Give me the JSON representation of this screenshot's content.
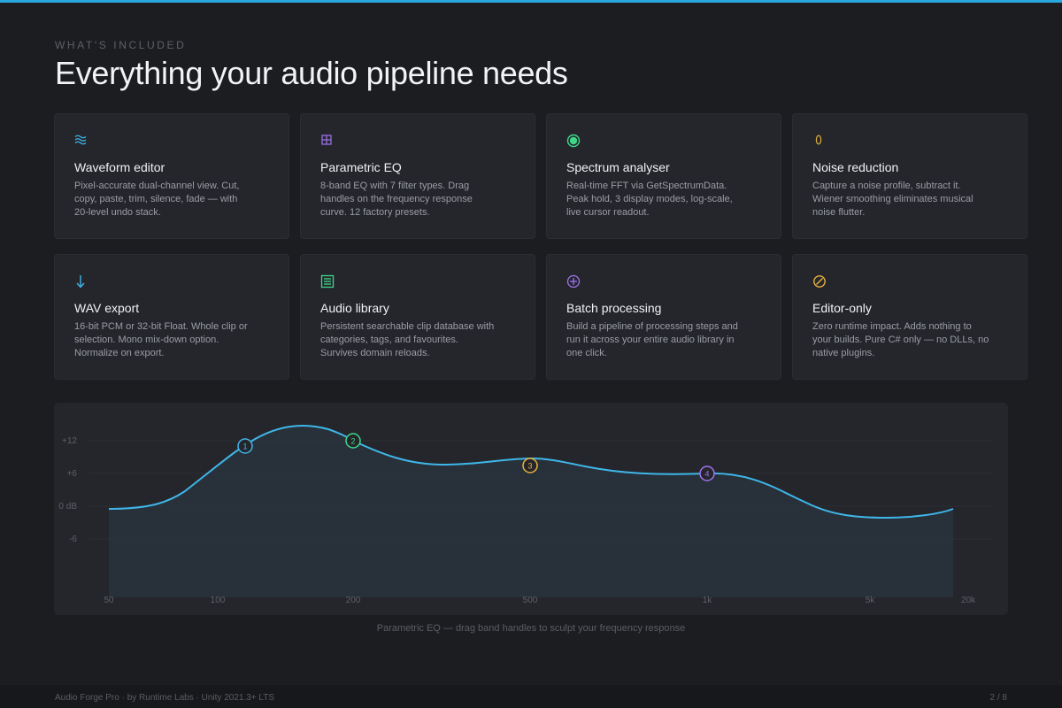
{
  "header": {
    "eyebrow": "WHAT'S INCLUDED",
    "title": "Everything your audio pipeline needs"
  },
  "features": [
    {
      "icon": "waveform-icon",
      "color": "#3fb6e8",
      "title": "Waveform editor",
      "description": "Pixel-accurate dual-channel view. Cut, copy, paste, trim, silence, fade — with 20-level undo stack."
    },
    {
      "icon": "grid-icon",
      "color": "#a074f0",
      "title": "Parametric EQ",
      "description": "8-band EQ with 7 filter types. Drag handles on the frequency response curve. 12 factory presets."
    },
    {
      "icon": "target-icon",
      "color": "#3fd68a",
      "title": "Spectrum analyser",
      "description": "Real-time FFT via GetSpectrumData. Peak hold, 3 display modes, log-scale, live cursor readout."
    },
    {
      "icon": "zero-icon",
      "color": "#e8b13f",
      "title": "Noise reduction",
      "description": "Capture a noise profile, subtract it. Wiener smoothing eliminates musical noise flutter."
    },
    {
      "icon": "down-arrow-icon",
      "color": "#3fb6e8",
      "title": "WAV export",
      "description": "16-bit PCM or 32-bit Float. Whole clip or selection. Mono mix-down option. Normalize on export."
    },
    {
      "icon": "list-icon",
      "color": "#3fd68a",
      "title": "Audio library",
      "description": "Persistent searchable clip database with categories, tags, and favourites. Survives domain reloads."
    },
    {
      "icon": "circle-plus-icon",
      "color": "#a074f0",
      "title": "Batch processing",
      "description": "Build a pipeline of processing steps and run it across your entire audio library in one click."
    },
    {
      "icon": "circle-slash-icon",
      "color": "#e8b13f",
      "title": "Editor-only",
      "description": "Zero runtime impact. Adds nothing to your builds. Pure C# only — no DLLs, no native plugins."
    }
  ],
  "eq": {
    "y_labels": [
      "+12",
      "+6",
      "0 dB",
      "-6"
    ],
    "x_labels": [
      "50",
      "100",
      "200",
      "500",
      "1k",
      "5k",
      "20k"
    ],
    "bands": [
      {
        "label": "1",
        "freq": 120,
        "gain": 11,
        "color": "#3fb6e8"
      },
      {
        "label": "2",
        "freq": 200,
        "gain": 12,
        "color": "#3fd68a"
      },
      {
        "label": "3",
        "freq": 500,
        "gain": 7.5,
        "color": "#e8b13f"
      },
      {
        "label": "4",
        "freq": 1000,
        "gain": 6,
        "color": "#a074f0"
      }
    ],
    "curve_color": "#3fb6e8"
  },
  "caption": "Parametric EQ — drag band handles to sculpt your frequency response",
  "footer": {
    "left": "Audio Forge Pro · by Runtime Labs · Unity 2021.3+ LTS",
    "right": "2 / 8"
  }
}
